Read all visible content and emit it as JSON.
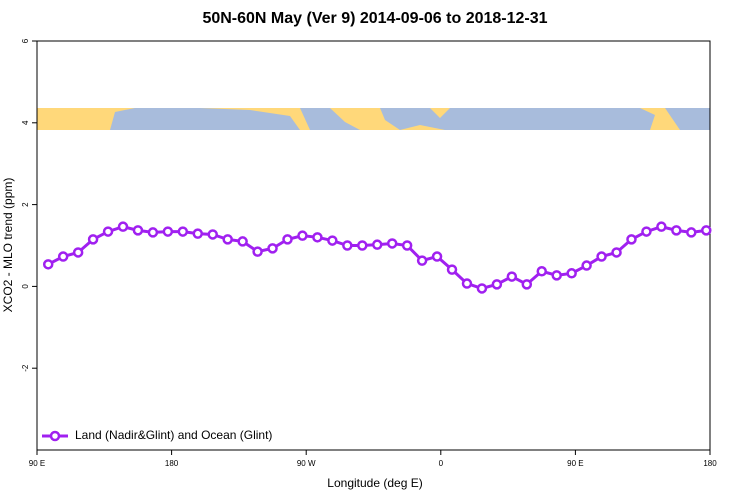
{
  "chart_data": {
    "type": "line",
    "title": "50N-60N May (Ver 9)   2014-09-06 to 2018-12-31",
    "x_label": "Longitude (deg E)",
    "y_label": "XCO2 - MLO trend (ppm)",
    "xlim": [
      90,
      540
    ],
    "xticks": [
      {
        "value": 90,
        "label": "90 E"
      },
      180,
      {
        "value": 270,
        "label": "90 W"
      },
      {
        "value": 360,
        "label": "0"
      },
      {
        "value": 450,
        "label": "90 E"
      },
      {
        "value": 540,
        "label": "180"
      }
    ],
    "ylim": [
      -4,
      6
    ],
    "yticks": [
      -2,
      0,
      2,
      4,
      6
    ],
    "legend": "bottom-left",
    "x": [
      97.5,
      107.5,
      117.5,
      127.5,
      137.5,
      147.5,
      157.5,
      167.5,
      177.5,
      187.5,
      197.5,
      207.5,
      217.5,
      227.5,
      237.5,
      247.5,
      257.5,
      267.5,
      277.5,
      287.5,
      297.5,
      307.5,
      317.5,
      327.5,
      337.5,
      347.5,
      357.5,
      367.5,
      377.5,
      387.5,
      397.5,
      407.5,
      417.5,
      427.5,
      437.5,
      447.5,
      457.5,
      467.5,
      477.5,
      487.5,
      497.5,
      507.5,
      517.5,
      527.5,
      537.5
    ],
    "series": [
      {
        "name": "Land (Nadir&Glint) and Ocean (Glint)",
        "color": "#a020f0",
        "values": [
          0.54,
          0.73,
          0.83,
          1.15,
          1.34,
          1.46,
          1.37,
          1.32,
          1.34,
          1.34,
          1.29,
          1.27,
          1.15,
          1.1,
          0.85,
          0.93,
          1.15,
          1.24,
          1.2,
          1.12,
          1.0,
          1.0,
          1.02,
          1.05,
          1.0,
          0.63,
          0.73,
          0.41,
          0.07,
          -0.05,
          0.05,
          0.24,
          0.05,
          0.37,
          0.27,
          0.32,
          0.51,
          0.73,
          0.83,
          1.15,
          1.34,
          1.46,
          1.37,
          1.32,
          1.37
        ]
      }
    ]
  }
}
